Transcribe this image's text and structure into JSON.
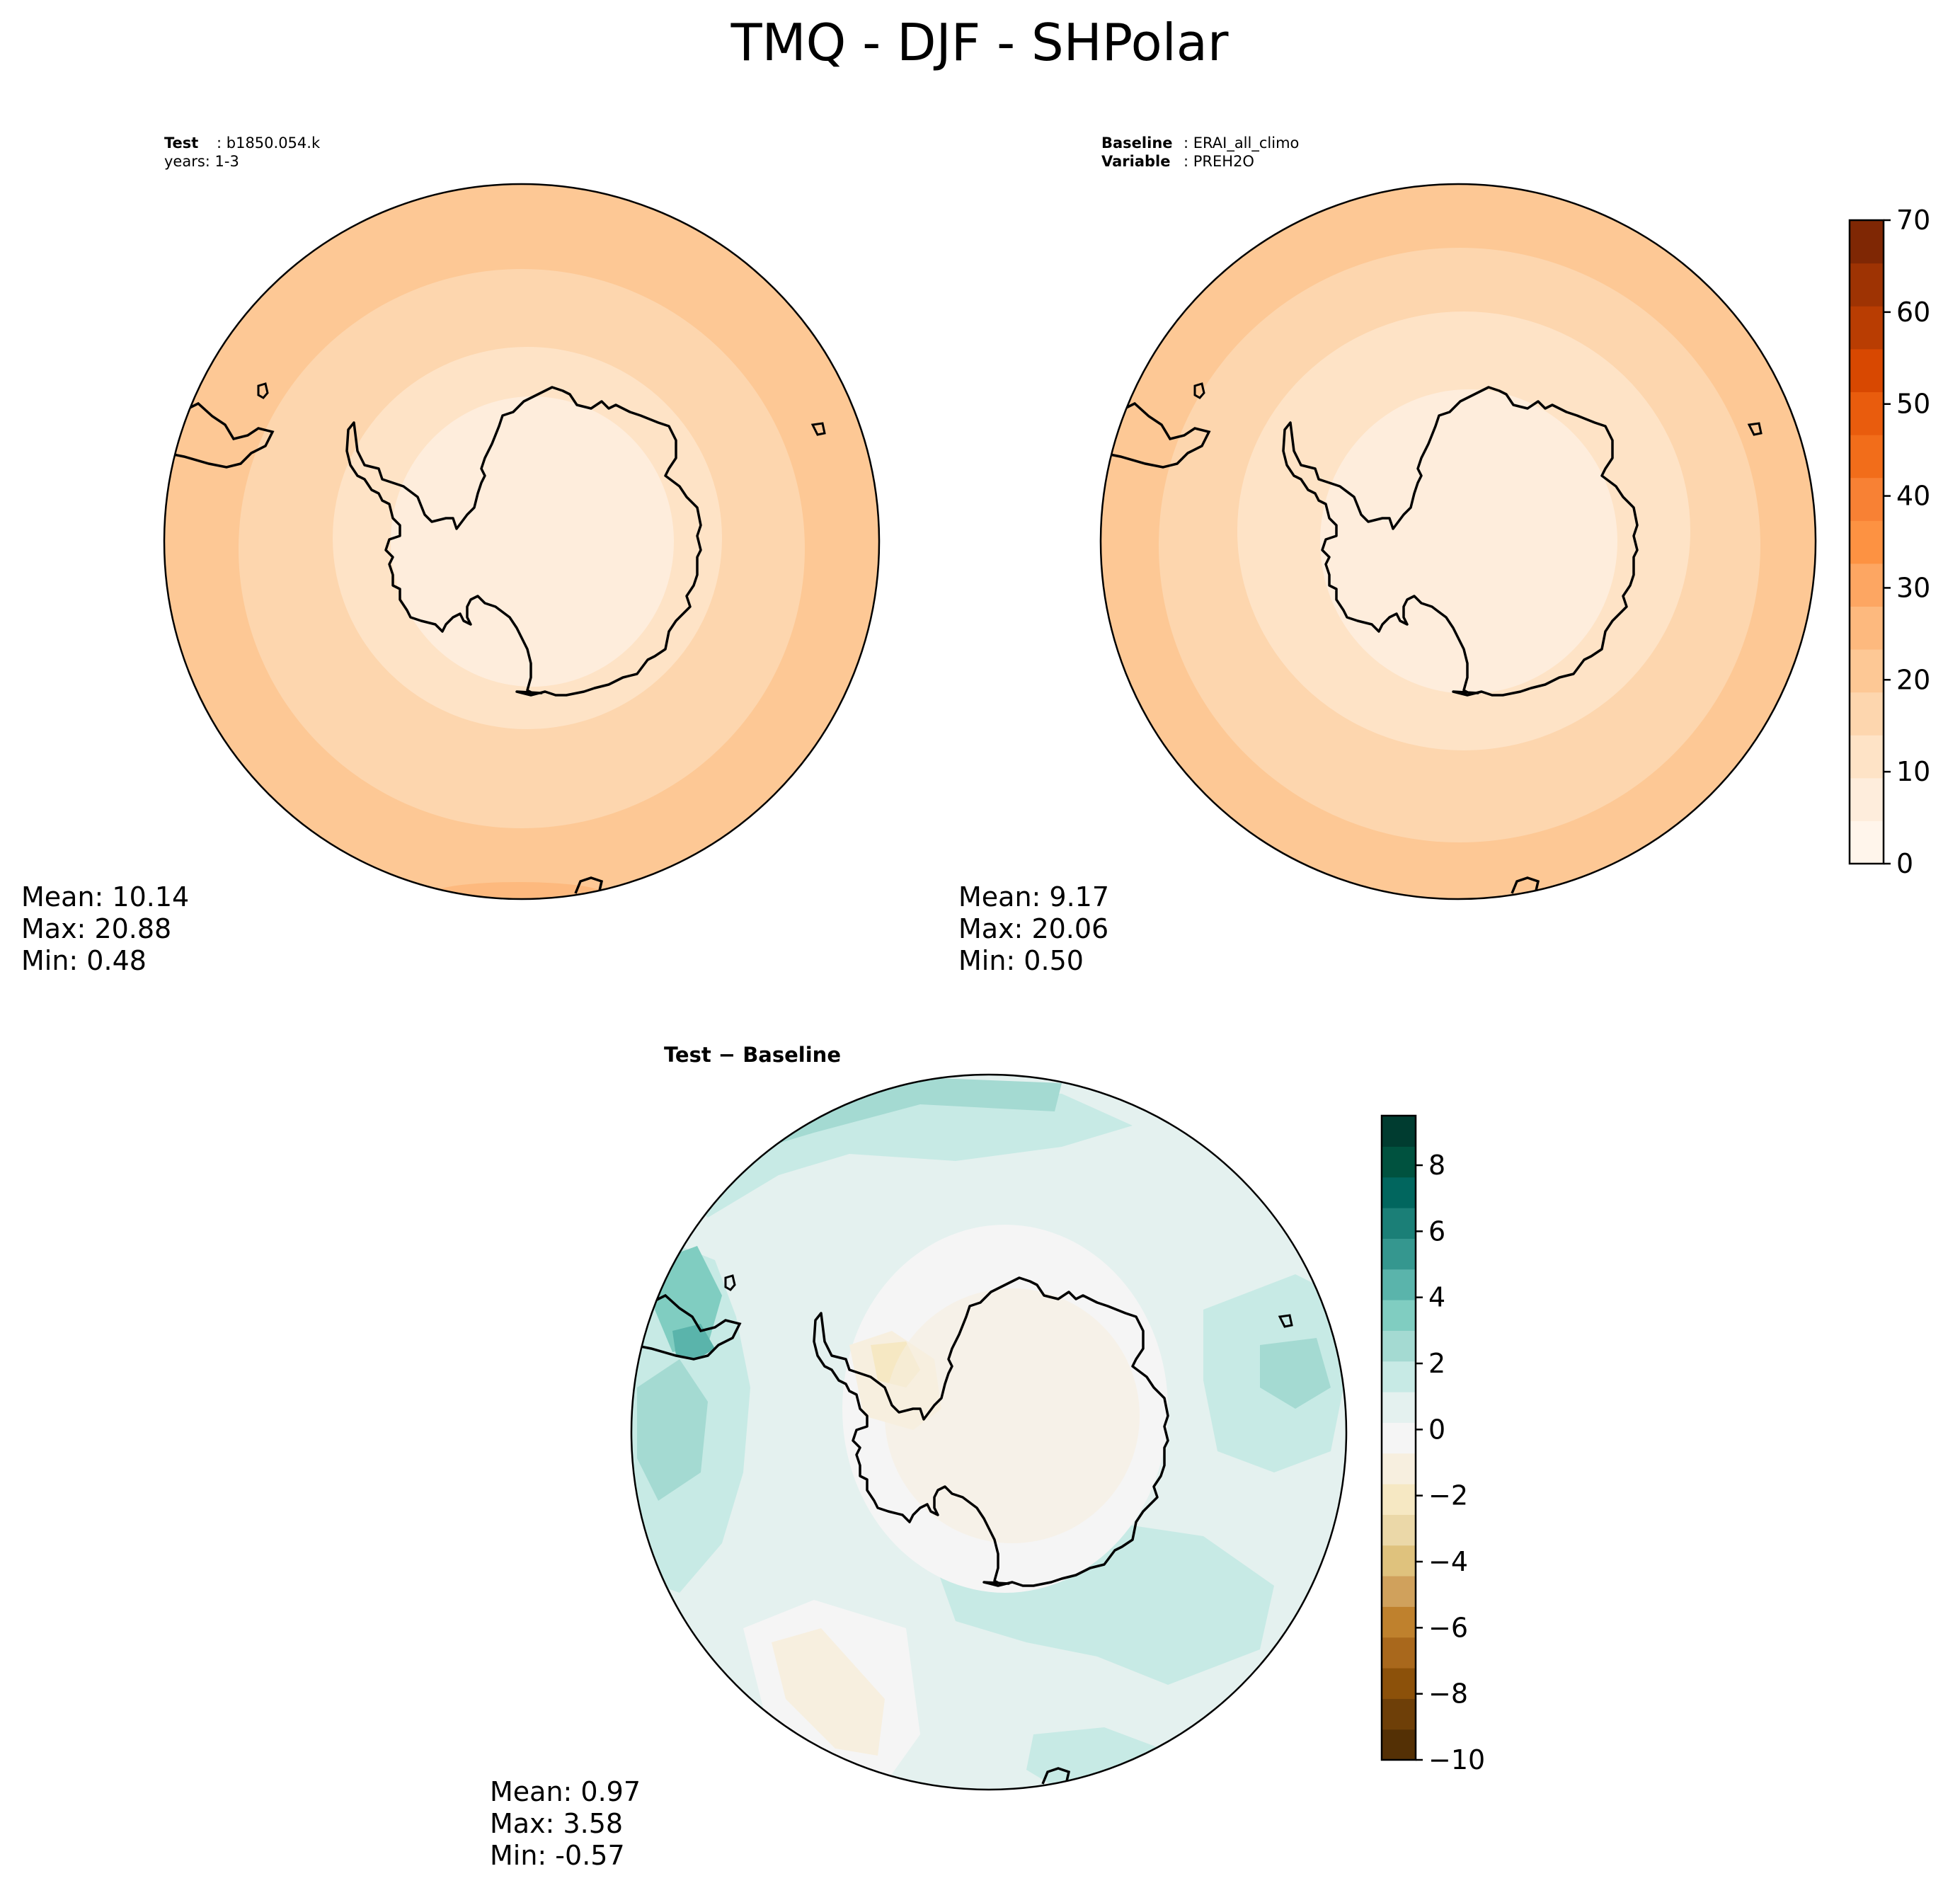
{
  "figure": {
    "title": "TMQ - DJF - SHPolar"
  },
  "colors": {
    "coast": "#000000",
    "orange_scale": [
      "#fff5eb",
      "#feeddc",
      "#fee3c6",
      "#fdd6ae",
      "#fdc895",
      "#fdb97e",
      "#fda662",
      "#fd9242",
      "#f88134",
      "#f26d1a",
      "#e95c0d",
      "#d84801",
      "#b93d02",
      "#9e3303",
      "#7f2704"
    ],
    "diff_scale": [
      "#543005",
      "#6e3f08",
      "#8c510a",
      "#a9681c",
      "#bf812d",
      "#d0a15c",
      "#dfc27d",
      "#ebd8a8",
      "#f6e8c3",
      "#f7efdf",
      "#f5f5f5",
      "#e4f1ef",
      "#c7eae5",
      "#a4dad2",
      "#80cdc1",
      "#5ab4ab",
      "#35978f",
      "#1b7f77",
      "#01665e",
      "#00523f",
      "#003c30"
    ]
  },
  "panels": {
    "test": {
      "label_bold": "Test",
      "label_value": ": b1850.054.k",
      "years": "years: 1-3",
      "mean": "Mean: 10.14",
      "max": "Max: 20.88",
      "min": "Min:  0.48"
    },
    "baseline": {
      "label_bold": "Baseline",
      "label_value": ": ERAI_all_climo",
      "var_bold": "Variable",
      "var_value": ": PREH2O",
      "mean": "Mean:  9.17",
      "max": "Max: 20.06",
      "min": "Min:  0.50"
    },
    "diff": {
      "title": "Test − Baseline",
      "mean": "Mean:  0.97",
      "max": "Max:  3.58",
      "min": "Min: -0.57"
    }
  },
  "colorbars": {
    "top": {
      "min": 0,
      "max": 70,
      "ticks": [
        "0",
        "10",
        "20",
        "30",
        "40",
        "50",
        "60",
        "70"
      ]
    },
    "diff": {
      "min": -10,
      "max": 9.5,
      "ticks": [
        "−10",
        "−8",
        "−6",
        "−4",
        "−2",
        "0",
        "2",
        "4",
        "6",
        "8"
      ]
    }
  }
}
